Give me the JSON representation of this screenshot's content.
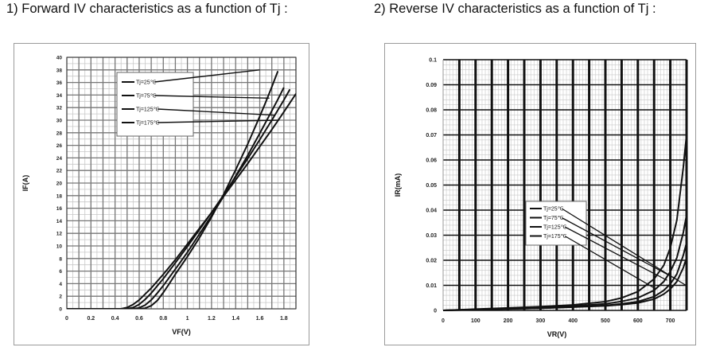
{
  "headings": {
    "forward": "1) Forward IV characteristics as a function of Tj :",
    "reverse": "2) Reverse IV characteristics as a function of Tj :"
  },
  "colors": {
    "curve": "#111111",
    "grid_minor": "#c8c8c8",
    "grid_major": "#111111"
  },
  "chart_data": [
    {
      "type": "line",
      "title": "1) Forward IV characteristics as a function of Tj :",
      "xlabel": "VF(V)",
      "ylabel": "IF(A)",
      "xlim": [
        0,
        1.9
      ],
      "ylim": [
        0,
        40
      ],
      "xticks": [
        "0",
        "0.2",
        "0.4",
        "0.6",
        "0.8",
        "1",
        "1.2",
        "1.4",
        "1.6",
        "1.8"
      ],
      "yticks": [
        "0",
        "2",
        "4",
        "6",
        "8",
        "10",
        "12",
        "14",
        "16",
        "18",
        "20",
        "22",
        "24",
        "26",
        "28",
        "30",
        "32",
        "34",
        "36",
        "38",
        "40"
      ],
      "grid": true,
      "legend": "top-left",
      "series": [
        {
          "name": "Tj=25℃",
          "x": [
            0,
            0.6,
            0.65,
            0.7,
            0.75,
            0.8,
            0.85,
            0.9,
            1.0,
            1.1,
            1.2,
            1.3,
            1.4,
            1.5,
            1.6,
            1.65,
            1.7,
            1.75
          ],
          "y": [
            0,
            0,
            0.1,
            0.5,
            1.3,
            2.6,
            4.0,
            5.5,
            8.3,
            11.3,
            14.6,
            18.2,
            22.1,
            26.2,
            30.6,
            32.9,
            35.3,
            37.8
          ]
        },
        {
          "name": "Tj=75℃",
          "x": [
            0,
            0.55,
            0.6,
            0.65,
            0.7,
            0.75,
            0.8,
            0.9,
            1.0,
            1.1,
            1.2,
            1.3,
            1.4,
            1.5,
            1.6,
            1.7,
            1.75,
            1.8
          ],
          "y": [
            0,
            0,
            0.15,
            0.6,
            1.4,
            2.5,
            3.7,
            6.3,
            9.0,
            11.9,
            14.8,
            17.9,
            21.1,
            24.4,
            27.9,
            31.5,
            33.3,
            35.2
          ]
        },
        {
          "name": "Tj=125℃",
          "x": [
            0,
            0.5,
            0.55,
            0.6,
            0.65,
            0.7,
            0.8,
            0.9,
            1.0,
            1.1,
            1.2,
            1.3,
            1.4,
            1.5,
            1.6,
            1.7,
            1.8,
            1.85
          ],
          "y": [
            0,
            0,
            0.2,
            0.7,
            1.5,
            2.5,
            4.8,
            7.3,
            9.9,
            12.6,
            15.3,
            18.1,
            21.0,
            23.9,
            26.9,
            30.0,
            33.2,
            34.9
          ]
        },
        {
          "name": "Tj=175℃",
          "x": [
            0,
            0.45,
            0.5,
            0.55,
            0.6,
            0.7,
            0.8,
            0.9,
            1.0,
            1.1,
            1.2,
            1.3,
            1.4,
            1.5,
            1.6,
            1.7,
            1.8,
            1.9
          ],
          "y": [
            0,
            0,
            0.2,
            0.7,
            1.4,
            3.3,
            5.5,
            7.8,
            10.3,
            12.8,
            15.3,
            17.9,
            20.5,
            23.1,
            25.8,
            28.5,
            31.3,
            34.2
          ]
        }
      ]
    },
    {
      "type": "line",
      "title": "2) Reverse IV characteristics as a function of Tj :",
      "xlabel": "VR(V)",
      "ylabel": "IR(mA)",
      "xlim": [
        0,
        750
      ],
      "ylim": [
        0,
        0.1
      ],
      "xticks": [
        "0",
        "100",
        "200",
        "300",
        "400",
        "500",
        "600",
        "700"
      ],
      "yticks": [
        "0",
        "0.01",
        "0.02",
        "0.03",
        "0.04",
        "0.05",
        "0.06",
        "0.07",
        "0.08",
        "0.09",
        "0.1"
      ],
      "grid": true,
      "legend": "center-right",
      "series": [
        {
          "name": "Tj=25℃",
          "x": [
            0,
            100,
            200,
            300,
            400,
            500,
            550,
            600,
            650,
            680,
            700,
            720,
            740,
            750
          ],
          "y": [
            0,
            0.0003,
            0.0006,
            0.0009,
            0.0013,
            0.0018,
            0.0023,
            0.003,
            0.0045,
            0.0065,
            0.0085,
            0.0115,
            0.017,
            0.021
          ]
        },
        {
          "name": "Tj=75℃",
          "x": [
            0,
            100,
            200,
            300,
            400,
            500,
            550,
            600,
            650,
            680,
            700,
            720,
            740,
            750
          ],
          "y": [
            0,
            0.0003,
            0.0006,
            0.0009,
            0.0014,
            0.002,
            0.0026,
            0.0035,
            0.0055,
            0.008,
            0.0105,
            0.0145,
            0.022,
            0.027
          ]
        },
        {
          "name": "Tj=125℃",
          "x": [
            0,
            100,
            200,
            300,
            400,
            500,
            550,
            600,
            650,
            680,
            700,
            720,
            740,
            750
          ],
          "y": [
            0,
            0.0004,
            0.0008,
            0.0012,
            0.0017,
            0.0026,
            0.0036,
            0.005,
            0.008,
            0.0115,
            0.0155,
            0.021,
            0.031,
            0.038
          ]
        },
        {
          "name": "Tj=175℃",
          "x": [
            0,
            100,
            200,
            300,
            400,
            500,
            550,
            600,
            650,
            680,
            700,
            720,
            740,
            750
          ],
          "y": [
            0,
            0.0005,
            0.001,
            0.0015,
            0.0022,
            0.0035,
            0.005,
            0.0075,
            0.0125,
            0.018,
            0.025,
            0.036,
            0.057,
            0.07
          ]
        }
      ]
    }
  ]
}
